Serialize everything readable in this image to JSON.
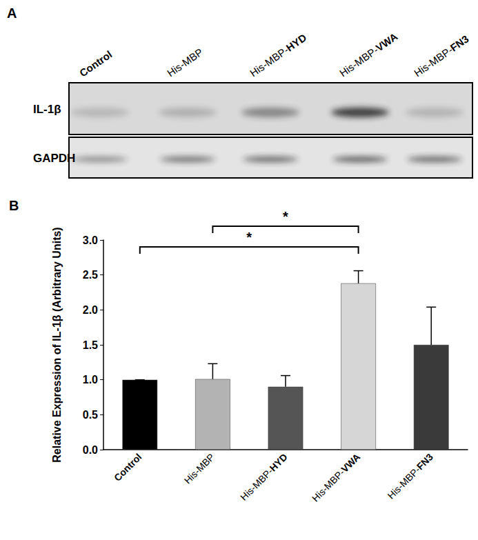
{
  "chart_data": {
    "type": "bar",
    "title": "B",
    "categories": [
      "Control",
      "His-MBP",
      "His-MBP-HYD",
      "His-MBP-VWA",
      "His-MBP-FN3"
    ],
    "values": [
      1.0,
      1.01,
      0.9,
      2.38,
      1.5
    ],
    "errors": [
      0,
      0.22,
      0.16,
      0.18,
      0.54
    ],
    "colors": [
      "#000000",
      "#b3b3b3",
      "#555555",
      "#d6d6d6",
      "#3a3a3a"
    ],
    "y_label": "Relative Expression of IL-1β (Arbitrary Units)",
    "ylim": [
      0,
      3
    ],
    "yticks": [
      {
        "value": 0,
        "label": "0.0"
      },
      0.5,
      {
        "value": 1,
        "label": "1.0"
      },
      1.5,
      {
        "value": 2,
        "label": "2.0"
      },
      2.5,
      {
        "value": 3,
        "label": "3.0"
      }
    ],
    "grid": false,
    "annotations": [
      {
        "text": "*",
        "from": "Control",
        "to": "His-MBP-VWA"
      },
      {
        "text": "*",
        "from": "His-MBP",
        "to": "His-MBP-VWA"
      }
    ]
  },
  "blot": {
    "panel_label": "A",
    "lanes": [
      "Control",
      "His-MBP",
      "His-MBP-HYD",
      "His-MBP-VWA",
      "His-MBP-FN3"
    ],
    "rows": [
      "IL-1β",
      "GAPDH"
    ]
  }
}
